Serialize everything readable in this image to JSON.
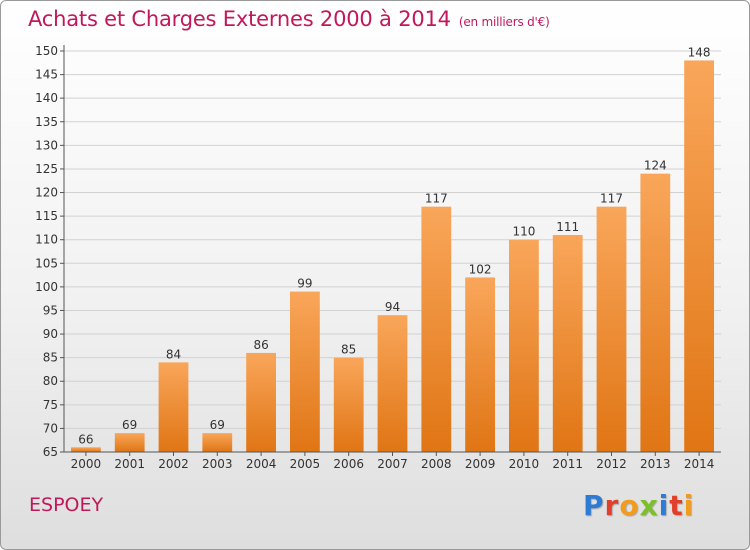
{
  "header": {
    "title": "Achats et Charges Externes 2000 à 2014",
    "unit": "(en milliers d'€)"
  },
  "footer": {
    "commune": "ESPOEY",
    "brand": "Proxiti",
    "brand_letters": [
      {
        "char": "P",
        "color": "#2e7bd6"
      },
      {
        "char": "r",
        "color": "#e0402a"
      },
      {
        "char": "o",
        "color": "#f29c1f"
      },
      {
        "char": "x",
        "color": "#7cbf2a"
      },
      {
        "char": "i",
        "color": "#2e7bd6"
      },
      {
        "char": "t",
        "color": "#e0402a"
      },
      {
        "char": "i",
        "color": "#f29c1f"
      }
    ]
  },
  "chart_data": {
    "type": "bar",
    "title": "Achats et Charges Externes 2000 à 2014",
    "subtitle": "(en milliers d'€)",
    "categories": [
      "2000",
      "2001",
      "2002",
      "2003",
      "2004",
      "2005",
      "2006",
      "2007",
      "2008",
      "2009",
      "2010",
      "2011",
      "2012",
      "2013",
      "2014"
    ],
    "values": [
      66,
      69,
      84,
      69,
      86,
      99,
      85,
      94,
      117,
      102,
      110,
      111,
      117,
      124,
      148
    ],
    "value_labels": [
      "66",
      "69",
      "84",
      "69",
      "86",
      "99",
      "85",
      "94",
      "117",
      "102",
      "110",
      "111",
      "117",
      "124",
      "148"
    ],
    "ylim": [
      65,
      150
    ],
    "yticks": [
      65,
      70,
      75,
      80,
      85,
      90,
      95,
      100,
      105,
      110,
      115,
      120,
      125,
      130,
      135,
      140,
      145,
      150
    ],
    "grid": true,
    "bar_color_top": "#f9a65a",
    "bar_color_bottom": "#e07514"
  }
}
